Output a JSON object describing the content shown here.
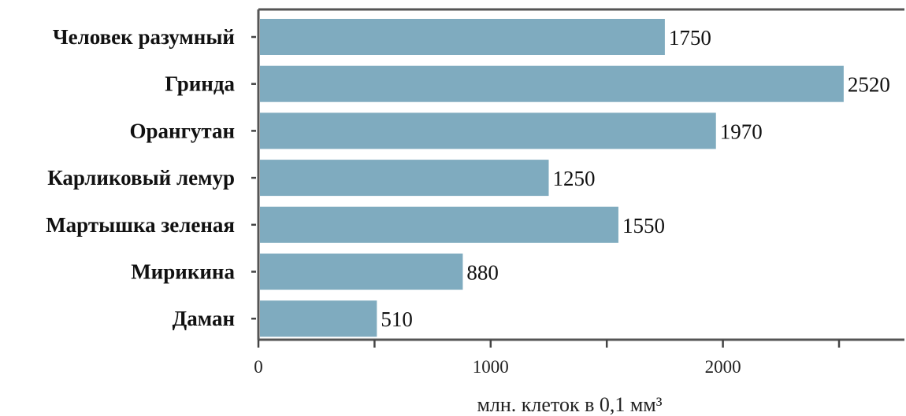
{
  "chart_data": {
    "type": "bar",
    "orientation": "horizontal",
    "categories": [
      "Человек разумный",
      "Гринда",
      "Орангутан",
      "Карликовый лемур",
      "Мартышка зеленая",
      "Мирикина",
      "Даман"
    ],
    "values": [
      1750,
      2520,
      1970,
      1250,
      1550,
      880,
      510
    ],
    "data_labels": [
      "1750",
      "2520",
      "1970",
      "1250",
      "1550",
      "880",
      "510"
    ],
    "xlabel": "млн. клеток в 0,1 мм³",
    "ylabel": "",
    "xlim": [
      0,
      2800
    ],
    "x_ticks": [
      0,
      500,
      1000,
      1500,
      2000,
      2500
    ],
    "x_tick_labels": [
      "0",
      "",
      "1000",
      "",
      "2000",
      ""
    ],
    "bar_color": "#7fabbf",
    "grid": false,
    "legend": "none"
  }
}
